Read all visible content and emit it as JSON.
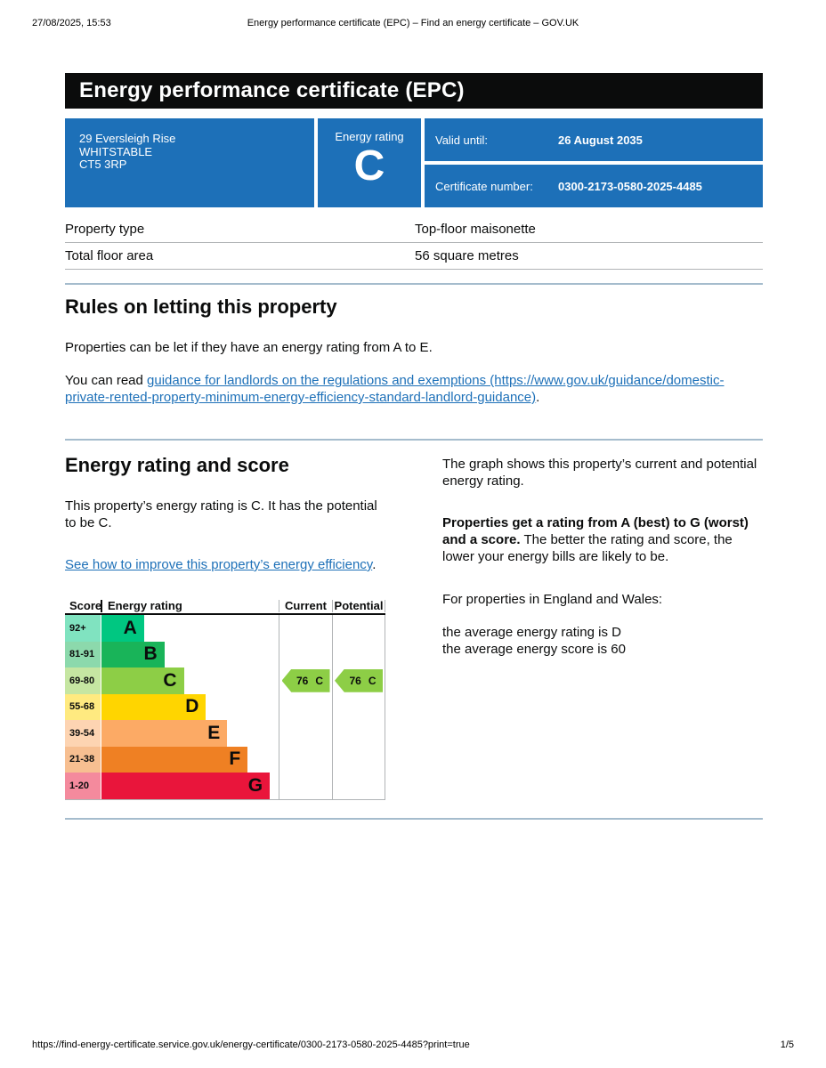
{
  "print_header": {
    "datetime": "27/08/2025, 15:53",
    "title": "Energy performance certificate (EPC) – Find an energy certificate – GOV.UK"
  },
  "banner": {
    "title": "Energy performance certificate (EPC)"
  },
  "summary_panel": {
    "address_lines": [
      "29 Eversleigh Rise",
      "WHITSTABLE",
      "CT5 3RP"
    ],
    "rating_label": "Energy rating",
    "rating_value": "C",
    "valid_until_label": "Valid until:",
    "valid_until_value": "26 August 2035",
    "certificate_number_label": "Certificate number:",
    "certificate_number_value": "0300-2173-0580-2025-4485"
  },
  "property_table": {
    "rows": [
      {
        "label": "Property type",
        "value": "Top-floor maisonette"
      },
      {
        "label": "Total floor area",
        "value": "56 square metres"
      }
    ]
  },
  "rules_section": {
    "heading": "Rules on letting this property",
    "para1": "Properties can be let if they have an energy rating from A to E.",
    "para2_prefix": "You can read ",
    "para2_link": "guidance for landlords on the regulations and exemptions (https://www.gov.uk/guidance/domestic-private-rented-property-minimum-energy-efficiency-standard-landlord-guidance)",
    "para2_suffix": "."
  },
  "rating_section": {
    "heading": "Energy rating and score",
    "para1": "This property’s energy rating is C. It has the potential to be C.",
    "link_text": "See how to improve this property’s energy efficiency",
    "link_suffix": ".",
    "right_para1": "The graph shows this property’s current and potential energy rating.",
    "right_para2_bold": "Properties get a rating from A (best) to G (worst) and a score.",
    "right_para2_rest": " The better the rating and score, the lower your energy bills are likely to be.",
    "right_para3": "For properties in England and Wales:",
    "right_para4_line1": "the average energy rating is D",
    "right_para4_line2": "the average energy score is 60"
  },
  "chart": {
    "headers": {
      "score": "Score",
      "rating": "Energy rating",
      "current": "Current",
      "potential": "Potential"
    },
    "arrow_color": "#8dce46",
    "bands": [
      {
        "score": "92+",
        "letter": "A",
        "color": "#00c781",
        "tint": "#80e3c0",
        "width_pct": 24
      },
      {
        "score": "81-91",
        "letter": "B",
        "color": "#19b459",
        "tint": "#8cd9ac",
        "width_pct": 35.5
      },
      {
        "score": "69-80",
        "letter": "C",
        "color": "#8dce46",
        "tint": "#c6e6a2",
        "width_pct": 46.5
      },
      {
        "score": "55-68",
        "letter": "D",
        "color": "#ffd500",
        "tint": "#ffea80",
        "width_pct": 59
      },
      {
        "score": "39-54",
        "letter": "E",
        "color": "#fcaa65",
        "tint": "#fdd4b2",
        "width_pct": 71
      },
      {
        "score": "21-38",
        "letter": "F",
        "color": "#ef8023",
        "tint": "#f7bf91",
        "width_pct": 82.5
      },
      {
        "score": "1-20",
        "letter": "G",
        "color": "#e9153b",
        "tint": "#f48a9d",
        "width_pct": 95
      }
    ],
    "current": {
      "score": "76",
      "band": "C"
    },
    "potential": {
      "score": "76",
      "band": "C"
    }
  },
  "chart_data": {
    "type": "bar",
    "title": "Energy rating and score",
    "column_headers": [
      "Score",
      "Energy rating",
      "Current",
      "Potential"
    ],
    "categories": [
      "A",
      "B",
      "C",
      "D",
      "E",
      "F",
      "G"
    ],
    "score_ranges": [
      "92+",
      "81-91",
      "69-80",
      "55-68",
      "39-54",
      "21-38",
      "1-20"
    ],
    "band_colors": [
      "#00c781",
      "#19b459",
      "#8dce46",
      "#ffd500",
      "#fcaa65",
      "#ef8023",
      "#e9153b"
    ],
    "current_rating": {
      "score": 76,
      "band": "C"
    },
    "potential_rating": {
      "score": 76,
      "band": "C"
    },
    "legend_position": "none",
    "grid": false
  },
  "footer": {
    "url": "https://find-energy-certificate.service.gov.uk/energy-certificate/0300-2173-0580-2025-4485?print=true",
    "page": "1/5"
  },
  "colors": {
    "govuk_blue": "#1d70b8",
    "banner_black": "#0b0c0c",
    "table_border": "#b1b4b6",
    "section_divider": "#a5bccd"
  }
}
